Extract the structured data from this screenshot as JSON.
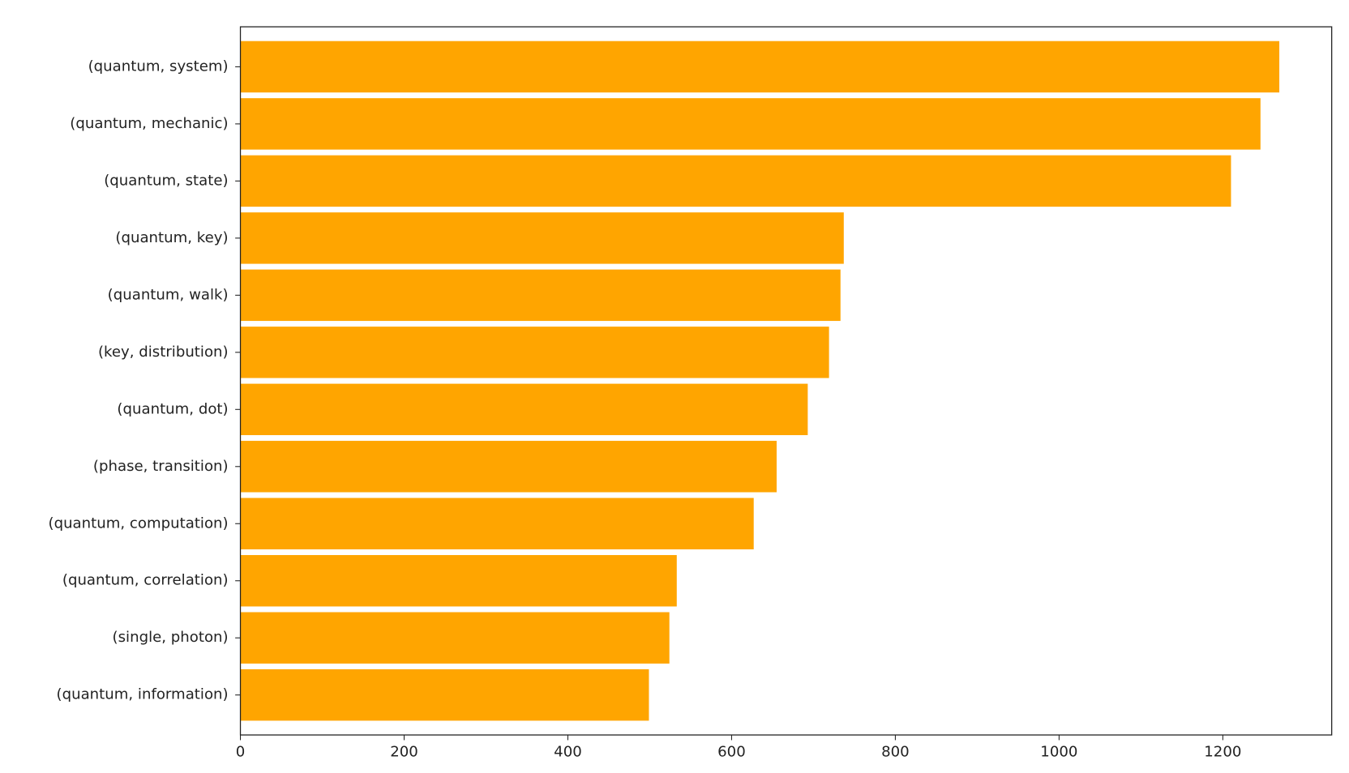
{
  "chart_data": {
    "type": "barh",
    "categories": [
      "(quantum, system)",
      "(quantum, mechanic)",
      "(quantum, state)",
      "(quantum, key)",
      "(quantum, walk)",
      "(key, distribution)",
      "(quantum, dot)",
      "(phase, transition)",
      "(quantum, computation)",
      "(quantum, correlation)",
      "(single, photon)",
      "(quantum, information)"
    ],
    "values": [
      1269,
      1246,
      1210,
      737,
      733,
      719,
      693,
      655,
      627,
      533,
      524,
      499
    ],
    "color": "#ffa500",
    "xlim": [
      0,
      1333
    ],
    "xticks": [
      0,
      200,
      400,
      600,
      800,
      1000,
      1200
    ]
  }
}
